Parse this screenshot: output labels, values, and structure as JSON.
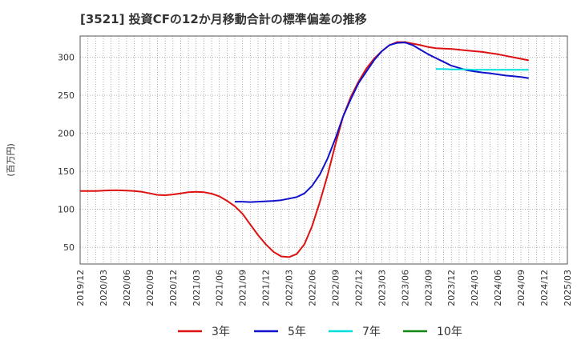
{
  "chart_data": {
    "type": "line",
    "title": "[3521]  投資CFの12か月移動合計の標準偏差の推移",
    "ylabel": "(百万円)",
    "xlabel": "",
    "ylim": [
      28,
      328
    ],
    "yticks": [
      50,
      100,
      150,
      200,
      250,
      300
    ],
    "x_tick_labels": [
      "2019/12",
      "2020/03",
      "2020/06",
      "2020/09",
      "2020/12",
      "2021/03",
      "2021/06",
      "2021/09",
      "2021/12",
      "2022/03",
      "2022/06",
      "2022/09",
      "2022/12",
      "2023/03",
      "2023/06",
      "2023/09",
      "2023/12",
      "2024/03",
      "2024/06",
      "2024/09",
      "2024/12",
      "2025/03"
    ],
    "grid": true,
    "legend_position": "bottom",
    "series": [
      {
        "name": "3年",
        "color": "#dd1111",
        "points": [
          [
            "2019/12",
            124
          ],
          [
            "2020/01",
            124
          ],
          [
            "2020/02",
            124
          ],
          [
            "2020/03",
            124.5
          ],
          [
            "2020/04",
            125
          ],
          [
            "2020/05",
            125
          ],
          [
            "2020/06",
            124.5
          ],
          [
            "2020/07",
            124
          ],
          [
            "2020/08",
            123
          ],
          [
            "2020/09",
            121
          ],
          [
            "2020/10",
            119
          ],
          [
            "2020/11",
            118.5
          ],
          [
            "2020/12",
            119.5
          ],
          [
            "2021/01",
            121
          ],
          [
            "2021/02",
            122.5
          ],
          [
            "2021/03",
            123
          ],
          [
            "2021/04",
            122.5
          ],
          [
            "2021/05",
            120.5
          ],
          [
            "2021/06",
            117
          ],
          [
            "2021/07",
            111
          ],
          [
            "2021/08",
            104
          ],
          [
            "2021/09",
            94
          ],
          [
            "2021/10",
            80
          ],
          [
            "2021/11",
            66
          ],
          [
            "2021/12",
            54
          ],
          [
            "2022/01",
            44
          ],
          [
            "2022/02",
            38
          ],
          [
            "2022/03",
            37
          ],
          [
            "2022/04",
            41
          ],
          [
            "2022/05",
            54
          ],
          [
            "2022/06",
            78
          ],
          [
            "2022/07",
            110
          ],
          [
            "2022/08",
            145
          ],
          [
            "2022/09",
            185
          ],
          [
            "2022/10",
            222
          ],
          [
            "2022/11",
            248
          ],
          [
            "2022/12",
            268
          ],
          [
            "2023/01",
            285
          ],
          [
            "2023/02",
            298
          ],
          [
            "2023/03",
            308
          ],
          [
            "2023/04",
            316
          ],
          [
            "2023/05",
            320
          ],
          [
            "2023/06",
            320
          ],
          [
            "2023/07",
            318
          ],
          [
            "2023/08",
            316
          ],
          [
            "2023/09",
            313.5
          ],
          [
            "2023/10",
            312
          ],
          [
            "2023/11",
            311.5
          ],
          [
            "2023/12",
            311
          ],
          [
            "2024/01",
            310
          ],
          [
            "2024/02",
            309
          ],
          [
            "2024/03",
            308
          ],
          [
            "2024/04",
            307
          ],
          [
            "2024/05",
            305.5
          ],
          [
            "2024/06",
            304
          ],
          [
            "2024/07",
            302
          ],
          [
            "2024/08",
            300
          ],
          [
            "2024/09",
            298
          ],
          [
            "2024/10",
            296
          ]
        ]
      },
      {
        "name": "5年",
        "color": "#1111cc",
        "points": [
          [
            "2021/08",
            110
          ],
          [
            "2021/09",
            110
          ],
          [
            "2021/10",
            109.5
          ],
          [
            "2021/11",
            110
          ],
          [
            "2021/12",
            110.5
          ],
          [
            "2022/01",
            111
          ],
          [
            "2022/02",
            112
          ],
          [
            "2022/03",
            114
          ],
          [
            "2022/04",
            116
          ],
          [
            "2022/05",
            121
          ],
          [
            "2022/06",
            131
          ],
          [
            "2022/07",
            146
          ],
          [
            "2022/08",
            167
          ],
          [
            "2022/09",
            193
          ],
          [
            "2022/10",
            222
          ],
          [
            "2022/11",
            245
          ],
          [
            "2022/12",
            266
          ],
          [
            "2023/01",
            281
          ],
          [
            "2023/02",
            296
          ],
          [
            "2023/03",
            308
          ],
          [
            "2023/04",
            316
          ],
          [
            "2023/05",
            319
          ],
          [
            "2023/06",
            319.5
          ],
          [
            "2023/07",
            316
          ],
          [
            "2023/08",
            310
          ],
          [
            "2023/09",
            304
          ],
          [
            "2023/10",
            299
          ],
          [
            "2023/11",
            294
          ],
          [
            "2023/12",
            289
          ],
          [
            "2024/01",
            286
          ],
          [
            "2024/02",
            283
          ],
          [
            "2024/03",
            281.5
          ],
          [
            "2024/04",
            280
          ],
          [
            "2024/05",
            279
          ],
          [
            "2024/06",
            277.5
          ],
          [
            "2024/07",
            276
          ],
          [
            "2024/08",
            275
          ],
          [
            "2024/09",
            274
          ],
          [
            "2024/10",
            272.5
          ]
        ]
      },
      {
        "name": "7年",
        "color": "#00dddd",
        "points": [
          [
            "2023/10",
            284.5
          ],
          [
            "2023/11",
            284.5
          ],
          [
            "2023/12",
            284
          ],
          [
            "2024/01",
            284
          ],
          [
            "2024/02",
            284
          ],
          [
            "2024/03",
            283.5
          ],
          [
            "2024/04",
            283.5
          ],
          [
            "2024/05",
            283.5
          ],
          [
            "2024/06",
            283.5
          ],
          [
            "2024/07",
            283.5
          ],
          [
            "2024/08",
            283.5
          ],
          [
            "2024/09",
            283.5
          ],
          [
            "2024/10",
            283.5
          ]
        ]
      },
      {
        "name": "10年",
        "color": "#118811",
        "points": []
      }
    ]
  }
}
